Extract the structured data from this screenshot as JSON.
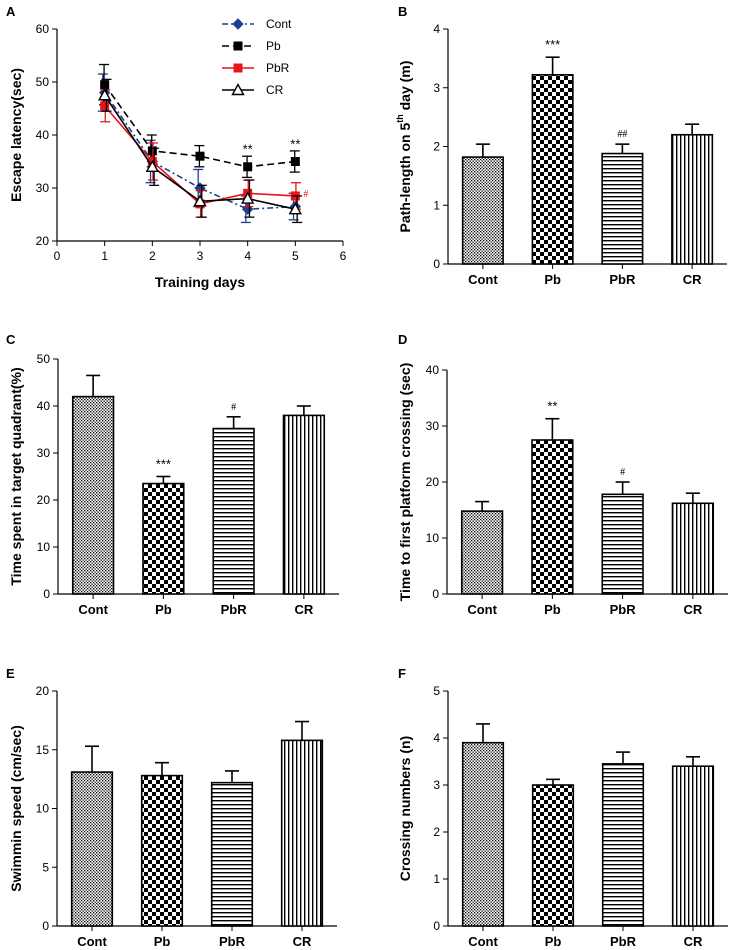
{
  "chart_data": [
    {
      "panel": "A",
      "type": "line",
      "xlabel": "Training days",
      "ylabel": "Escape latency(sec)",
      "xlim": [
        0,
        6
      ],
      "ylim": [
        20,
        60
      ],
      "xticks": [
        0,
        1,
        2,
        3,
        4,
        5,
        6
      ],
      "yticks": [
        20,
        30,
        40,
        50,
        60
      ],
      "x": [
        1,
        2,
        3,
        4,
        5
      ],
      "series": [
        {
          "name": "Cont",
          "color": "#1f3f8f",
          "dash": "dashdot",
          "marker": "diamond",
          "values": [
            48.0,
            35.0,
            30.0,
            26.0,
            26.5
          ],
          "err": [
            3.5,
            4.0,
            3.5,
            2.5,
            2.5
          ]
        },
        {
          "name": "Pb",
          "color": "#000000",
          "dash": "dashed",
          "marker": "square",
          "values": [
            49.5,
            37.0,
            36.0,
            34.0,
            35.0
          ],
          "err": [
            3.8,
            3.0,
            2.0,
            2.0,
            2.0
          ]
        },
        {
          "name": "PbR",
          "color": "#e8141c",
          "dash": "solid",
          "marker": "square",
          "values": [
            45.5,
            35.0,
            27.0,
            29.0,
            28.5
          ],
          "err": [
            3.0,
            3.5,
            2.5,
            2.5,
            2.5
          ]
        },
        {
          "name": "CR",
          "color": "#000000",
          "dash": "solid",
          "marker": "triangle",
          "values": [
            47.5,
            34.0,
            27.5,
            28.0,
            26.0
          ],
          "err": [
            3.0,
            3.5,
            3.0,
            3.5,
            2.5
          ]
        }
      ],
      "annotations": [
        {
          "text": "**",
          "x": 4,
          "y": 36.5,
          "color": "#000000",
          "small": false
        },
        {
          "text": "**",
          "x": 5,
          "y": 37.5,
          "color": "#000000",
          "small": false
        },
        {
          "text": "#",
          "x": 5.22,
          "y": 28.3,
          "color": "#e8141c",
          "small": true
        }
      ]
    },
    {
      "panel": "B",
      "type": "bar",
      "ylabel": "Path-length on 5",
      "ylabel_sup": "th",
      "ylabel_tail": " day (m)",
      "ylim": [
        0,
        4
      ],
      "yticks": [
        0,
        1,
        2,
        3,
        4
      ],
      "categories": [
        "Cont",
        "Pb",
        "PbR",
        "CR"
      ],
      "values": [
        1.82,
        3.22,
        1.88,
        2.2
      ],
      "err": [
        0.22,
        0.3,
        0.16,
        0.18
      ],
      "annotations": [
        "",
        "***",
        "##",
        ""
      ]
    },
    {
      "panel": "C",
      "type": "bar",
      "ylabel": "Time spent in target quadrant(%)",
      "ylim": [
        0,
        50
      ],
      "yticks": [
        0,
        10,
        20,
        30,
        40,
        50
      ],
      "categories": [
        "Cont",
        "Pb",
        "PbR",
        "CR"
      ],
      "values": [
        42.0,
        23.5,
        35.2,
        38.0
      ],
      "err": [
        4.5,
        1.5,
        2.5,
        2.0
      ],
      "annotations": [
        "",
        "***",
        "#",
        ""
      ]
    },
    {
      "panel": "D",
      "type": "bar",
      "ylabel": "Time to first platform crossing (sec)",
      "ylim": [
        0,
        40
      ],
      "yticks": [
        0,
        10,
        20,
        30,
        40
      ],
      "categories": [
        "Cont",
        "Pb",
        "PbR",
        "CR"
      ],
      "values": [
        14.8,
        27.5,
        17.8,
        16.2
      ],
      "err": [
        1.7,
        3.8,
        2.2,
        1.8
      ],
      "annotations": [
        "",
        "**",
        "#",
        ""
      ]
    },
    {
      "panel": "E",
      "type": "bar",
      "ylabel": "Swimmin speed (cm/sec)",
      "ylim": [
        0,
        20
      ],
      "yticks": [
        0,
        5,
        10,
        15,
        20
      ],
      "categories": [
        "Cont",
        "Pb",
        "PbR",
        "CR"
      ],
      "values": [
        13.1,
        12.8,
        12.2,
        15.8
      ],
      "err": [
        2.2,
        1.1,
        1.0,
        1.6
      ],
      "annotations": [
        "",
        "",
        "",
        ""
      ]
    },
    {
      "panel": "F",
      "type": "bar",
      "ylabel": "Crossing numbers (n)",
      "ylim": [
        0,
        5
      ],
      "yticks": [
        0,
        1,
        2,
        3,
        4,
        5
      ],
      "categories": [
        "Cont",
        "Pb",
        "PbR",
        "CR"
      ],
      "values": [
        3.9,
        3.0,
        3.45,
        3.4
      ],
      "err": [
        0.4,
        0.12,
        0.25,
        0.2
      ],
      "annotations": [
        "",
        "",
        "",
        ""
      ]
    }
  ]
}
